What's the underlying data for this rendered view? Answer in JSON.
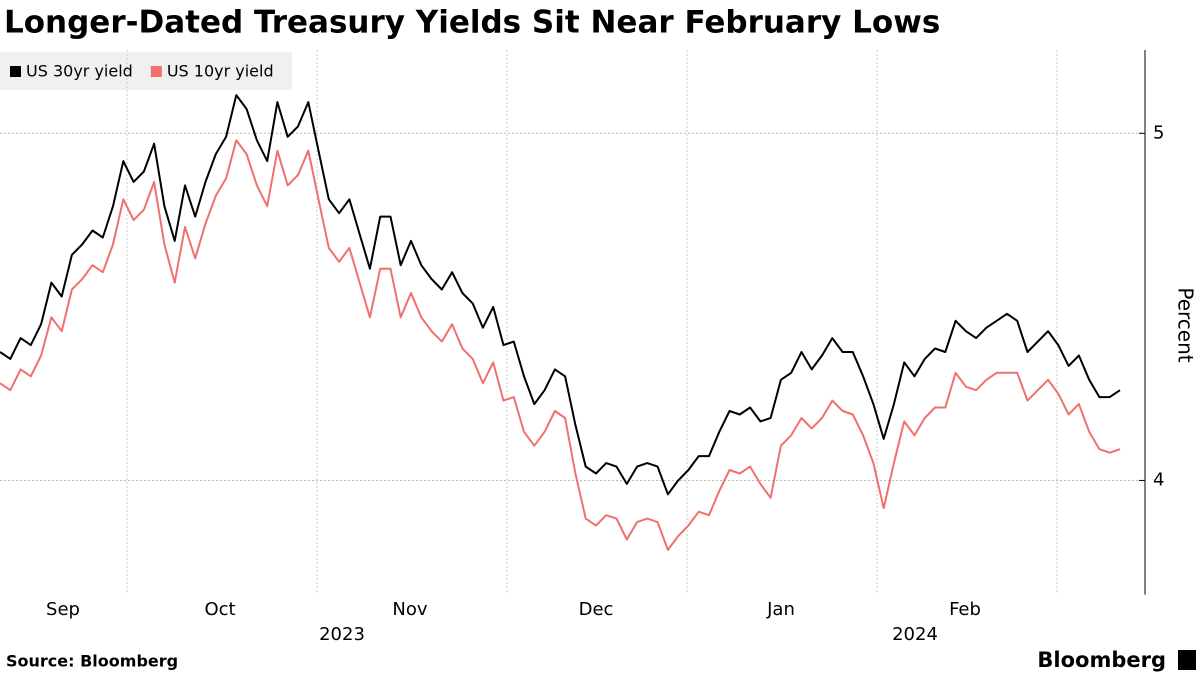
{
  "chart_data": {
    "type": "line",
    "title": "Longer-Dated Treasury Yields Sit Near February Lows",
    "y_label": "Percent",
    "x_labels": [
      "Sep",
      "Oct",
      "Nov",
      "Dec",
      "Jan",
      "Feb"
    ],
    "year_labels": [
      "2023",
      "2024"
    ],
    "source": "Source: Bloomberg",
    "brand": "Bloomberg",
    "ylim": [
      3.67,
      5.24
    ],
    "yticks": [
      4,
      5
    ],
    "grid": true,
    "legend": "top-left",
    "series": [
      {
        "name": "US 30yr yield",
        "color": "#000000",
        "values": [
          4.37,
          4.35,
          4.41,
          4.39,
          4.45,
          4.57,
          4.53,
          4.65,
          4.68,
          4.72,
          4.7,
          4.79,
          4.92,
          4.86,
          4.89,
          4.97,
          4.79,
          4.69,
          4.85,
          4.76,
          4.86,
          4.94,
          4.99,
          5.11,
          5.07,
          4.98,
          4.92,
          5.09,
          4.99,
          5.02,
          5.09,
          4.95,
          4.81,
          4.77,
          4.81,
          4.71,
          4.61,
          4.76,
          4.76,
          4.62,
          4.69,
          4.62,
          4.58,
          4.55,
          4.6,
          4.54,
          4.51,
          4.44,
          4.5,
          4.39,
          4.4,
          4.3,
          4.22,
          4.26,
          4.32,
          4.3,
          4.16,
          4.04,
          4.02,
          4.05,
          4.04,
          3.99,
          4.04,
          4.05,
          4.04,
          3.96,
          4.0,
          4.03,
          4.07,
          4.07,
          4.14,
          4.2,
          4.19,
          4.21,
          4.17,
          4.18,
          4.29,
          4.31,
          4.37,
          4.32,
          4.36,
          4.41,
          4.37,
          4.37,
          4.3,
          4.22,
          4.12,
          4.22,
          4.34,
          4.3,
          4.35,
          4.38,
          4.37,
          4.46,
          4.43,
          4.41,
          4.44,
          4.46,
          4.48,
          4.46,
          4.37,
          4.4,
          4.43,
          4.39,
          4.33,
          4.36,
          4.29,
          4.24,
          4.24,
          4.26
        ]
      },
      {
        "name": "US 10yr yield",
        "color": "#f07070",
        "values": [
          4.28,
          4.26,
          4.32,
          4.3,
          4.36,
          4.47,
          4.43,
          4.55,
          4.58,
          4.62,
          4.6,
          4.68,
          4.81,
          4.75,
          4.78,
          4.86,
          4.68,
          4.57,
          4.73,
          4.64,
          4.74,
          4.82,
          4.87,
          4.98,
          4.94,
          4.85,
          4.79,
          4.95,
          4.85,
          4.88,
          4.95,
          4.81,
          4.67,
          4.63,
          4.67,
          4.57,
          4.47,
          4.61,
          4.61,
          4.47,
          4.54,
          4.47,
          4.43,
          4.4,
          4.45,
          4.38,
          4.35,
          4.28,
          4.34,
          4.23,
          4.24,
          4.14,
          4.1,
          4.14,
          4.2,
          4.18,
          4.02,
          3.89,
          3.87,
          3.9,
          3.89,
          3.83,
          3.88,
          3.89,
          3.88,
          3.8,
          3.84,
          3.87,
          3.91,
          3.9,
          3.97,
          4.03,
          4.02,
          4.04,
          3.99,
          3.95,
          4.1,
          4.13,
          4.18,
          4.15,
          4.18,
          4.23,
          4.2,
          4.19,
          4.13,
          4.05,
          3.92,
          4.05,
          4.17,
          4.13,
          4.18,
          4.21,
          4.21,
          4.31,
          4.27,
          4.26,
          4.29,
          4.31,
          4.31,
          4.31,
          4.23,
          4.26,
          4.29,
          4.25,
          4.19,
          4.22,
          4.14,
          4.09,
          4.08,
          4.09
        ]
      }
    ]
  }
}
